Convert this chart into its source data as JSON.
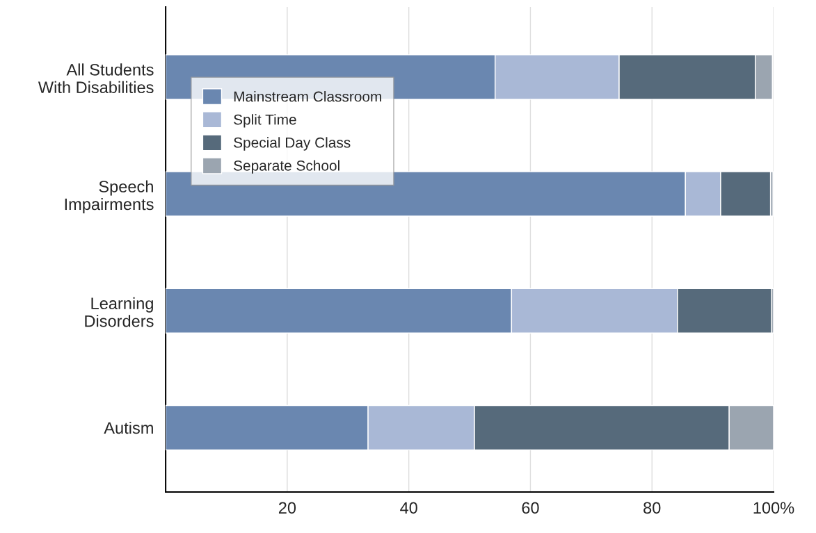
{
  "chart_data": {
    "type": "bar",
    "orientation": "horizontal",
    "stacked": true,
    "categories": [
      "All Students\nWith Disabilities",
      "Speech\nImpairments",
      "Learning\nDisorders",
      "Autism"
    ],
    "series": [
      {
        "name": "Mainstream Classroom",
        "color": "#6a87b0",
        "values": [
          54.2,
          85.5,
          56.9,
          33.3
        ]
      },
      {
        "name": "Split Time",
        "color": "#a9b8d6",
        "values": [
          20.4,
          5.8,
          27.3,
          17.5
        ]
      },
      {
        "name": "Special Day Class",
        "color": "#566a7b",
        "values": [
          22.4,
          8.2,
          15.5,
          41.9
        ]
      },
      {
        "name": "Separate School",
        "color": "#9ba5b0",
        "values": [
          2.8,
          0.4,
          0.3,
          7.3
        ]
      }
    ],
    "xlim": [
      0,
      100
    ],
    "xticks": [
      20,
      40,
      60,
      80,
      {
        "value": 100,
        "label": "100%"
      }
    ],
    "grid": "x",
    "legend": "top left"
  }
}
